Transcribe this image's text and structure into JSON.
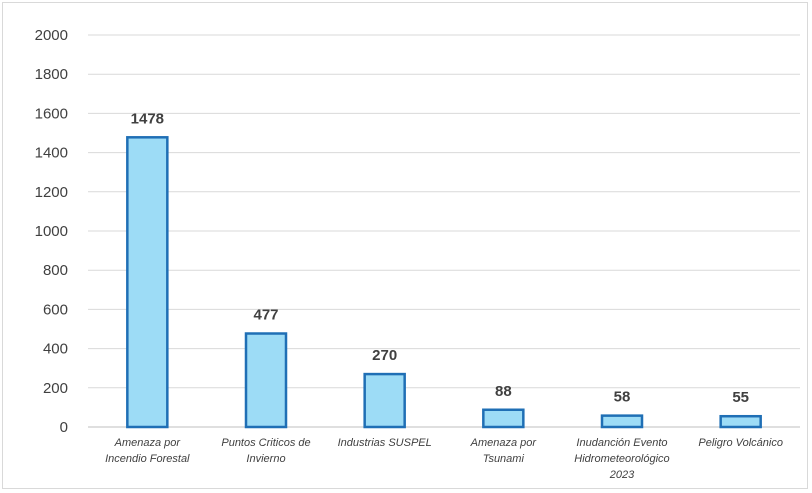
{
  "chart_data": {
    "type": "bar",
    "categories": [
      [
        "Amenaza por",
        "Incendio Forestal"
      ],
      [
        "Puntos Criticos de",
        "Invierno"
      ],
      [
        "Industrias SUSPEL"
      ],
      [
        "Amenaza por",
        "Tsunami"
      ],
      [
        "Inudanción Evento",
        "Hidrometeorológico",
        "2023"
      ],
      [
        "Peligro Volcánico"
      ]
    ],
    "values": [
      1478,
      477,
      270,
      88,
      58,
      55
    ],
    "data_labels": [
      "1478",
      "477",
      "270",
      "88",
      "58",
      "55"
    ],
    "yticks": [
      "0",
      "200",
      "400",
      "600",
      "800",
      "1000",
      "1200",
      "1400",
      "1600",
      "1800",
      "2000"
    ],
    "ylim": [
      0,
      2000
    ],
    "grid": true,
    "legend": "none",
    "title": "",
    "xlabel": "",
    "ylabel": "",
    "colors": {
      "bar_fill": "#9ddcf6",
      "bar_stroke": "#1f6fb5",
      "grid": "#d9d9d9",
      "text": "#404040"
    }
  }
}
